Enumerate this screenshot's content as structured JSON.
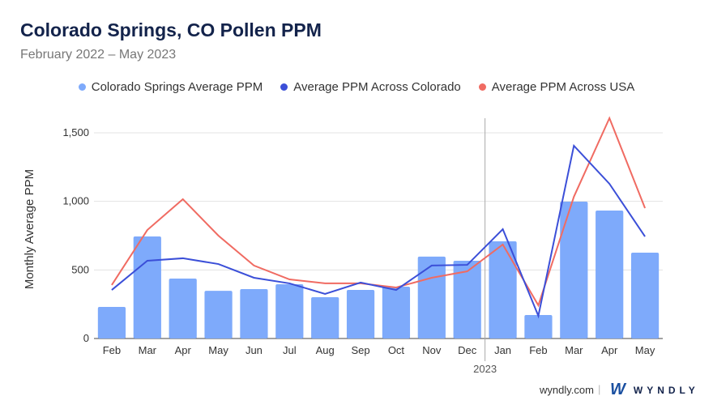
{
  "chart_data": {
    "type": "bar",
    "title": "Colorado Springs, CO Pollen PPM",
    "subtitle": "February 2022 – May 2023",
    "ylabel": "Monthly Average PPM",
    "xlabel": "",
    "ylim": [
      0,
      1500
    ],
    "yticks": [
      0,
      500,
      1000,
      1500
    ],
    "ytick_labels": [
      "0",
      "500",
      "1,000",
      "1,500"
    ],
    "categories": [
      "Feb",
      "Mar",
      "Apr",
      "May",
      "Jun",
      "Jul",
      "Aug",
      "Sep",
      "Oct",
      "Nov",
      "Dec",
      "Jan",
      "Feb",
      "Mar",
      "Apr",
      "May"
    ],
    "year_marker": {
      "label": "2023",
      "before_index": 11
    },
    "grid": true,
    "legend_placement": "top",
    "series": [
      {
        "name": "Colorado Springs Average PPM",
        "type": "bar",
        "color": "#7eaafb",
        "values": [
          230,
          744,
          437,
          348,
          360,
          396,
          301,
          354,
          378,
          597,
          567,
          709,
          171,
          998,
          933,
          626
        ]
      },
      {
        "name": "Average PPM Across Colorado",
        "type": "line",
        "color": "#3b4fd8",
        "values": [
          354,
          567,
          585,
          543,
          443,
          402,
          325,
          408,
          354,
          532,
          537,
          797,
          165,
          1406,
          1128,
          744
        ]
      },
      {
        "name": "Average PPM Across USA",
        "type": "line",
        "color": "#f06b62",
        "values": [
          390,
          791,
          1016,
          750,
          532,
          431,
          402,
          402,
          372,
          443,
          490,
          685,
          242,
          1034,
          1607,
          951
        ]
      }
    ]
  },
  "footer": {
    "site": "wyndly.com",
    "separator": "|",
    "brand": "WYNDLY"
  }
}
